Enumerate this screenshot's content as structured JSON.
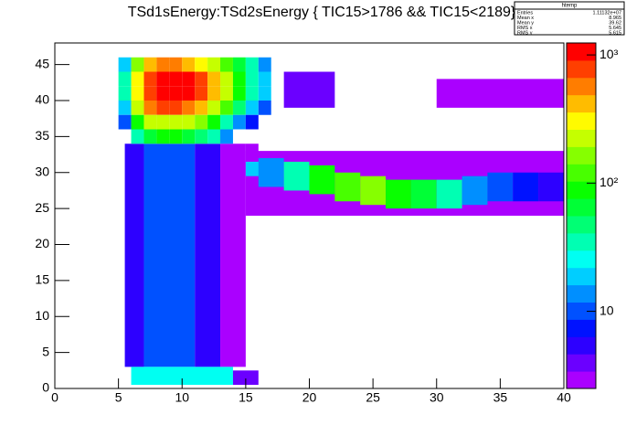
{
  "chart_data": {
    "type": "heatmap",
    "title": "TSd1sEnergy:TSd2sEnergy { TIC15>1786 && TIC15<2189}",
    "stats": {
      "name": "htemp",
      "rows": [
        {
          "label": "Entries",
          "value": "1.11132e+07"
        },
        {
          "label": "Mean x",
          "value": "8.965"
        },
        {
          "label": "Mean y",
          "value": "39.62"
        },
        {
          "label": "RMS x",
          "value": "5.645"
        },
        {
          "label": "RMS y",
          "value": "5.615"
        }
      ]
    },
    "xlim": [
      0,
      40
    ],
    "xticks": [
      0,
      5,
      10,
      15,
      20,
      25,
      30,
      35,
      40
    ],
    "ylim": [
      0,
      48
    ],
    "yticks": [
      0,
      5,
      10,
      15,
      20,
      25,
      30,
      35,
      40,
      45
    ],
    "zlim": [
      2.5,
      1240
    ],
    "zlog": true,
    "zticks": [
      10,
      {
        "value": 100,
        "label": "10²"
      },
      {
        "value": 1000,
        "label": "10³"
      }
    ],
    "cells": [
      [
        15,
        40,
        24,
        33,
        3
      ],
      [
        30,
        40,
        39,
        43,
        3
      ],
      [
        18,
        22,
        39,
        44,
        4
      ],
      [
        5.5,
        7,
        3,
        34,
        5
      ],
      [
        7,
        11,
        3,
        34,
        10
      ],
      [
        11,
        13,
        3,
        34,
        6
      ],
      [
        13,
        15,
        3,
        34,
        3
      ],
      [
        15,
        16,
        30,
        34,
        3
      ],
      [
        6,
        14,
        0.5,
        3,
        25
      ],
      [
        14,
        16,
        0.5,
        2.5,
        4
      ],
      [
        15,
        18,
        29.5,
        31.5,
        20
      ],
      [
        16,
        18,
        28,
        32,
        15
      ],
      [
        18,
        20,
        27.5,
        31.5,
        40
      ],
      [
        20,
        22,
        27,
        31,
        80
      ],
      [
        22,
        24,
        26,
        30,
        120
      ],
      [
        24,
        26,
        25.5,
        29.5,
        150
      ],
      [
        26,
        28,
        25,
        29,
        100
      ],
      [
        28,
        30,
        25,
        29,
        60
      ],
      [
        30,
        32,
        25,
        29,
        30
      ],
      [
        32,
        34,
        25.5,
        29.5,
        15
      ],
      [
        34,
        36,
        26,
        30,
        10
      ],
      [
        36,
        38,
        26,
        30,
        8
      ],
      [
        38,
        40,
        26,
        30,
        6
      ],
      [
        5,
        6,
        44,
        46,
        20
      ],
      [
        6,
        7,
        44,
        46,
        150
      ],
      [
        7,
        8,
        44,
        46,
        400
      ],
      [
        8,
        9,
        44,
        46,
        500
      ],
      [
        9,
        10,
        44,
        46,
        500
      ],
      [
        10,
        11,
        44,
        46,
        400
      ],
      [
        11,
        12,
        44,
        46,
        300
      ],
      [
        12,
        13,
        44,
        46,
        200
      ],
      [
        13,
        14,
        44,
        46,
        120
      ],
      [
        14,
        15,
        44,
        46,
        60
      ],
      [
        15,
        16,
        44,
        46,
        30
      ],
      [
        16,
        17,
        44,
        46,
        15
      ],
      [
        5,
        6,
        42,
        44,
        30
      ],
      [
        6,
        7,
        42,
        44,
        300
      ],
      [
        7,
        8,
        42,
        44,
        900
      ],
      [
        8,
        9,
        42,
        44,
        1100
      ],
      [
        9,
        10,
        42,
        44,
        1100
      ],
      [
        10,
        11,
        42,
        44,
        1000
      ],
      [
        11,
        12,
        42,
        44,
        700
      ],
      [
        12,
        13,
        42,
        44,
        400
      ],
      [
        13,
        14,
        42,
        44,
        200
      ],
      [
        14,
        15,
        42,
        44,
        80
      ],
      [
        15,
        16,
        42,
        44,
        40
      ],
      [
        16,
        17,
        42,
        44,
        20
      ],
      [
        5,
        6,
        40,
        42,
        30
      ],
      [
        6,
        7,
        40,
        42,
        300
      ],
      [
        7,
        8,
        40,
        42,
        900
      ],
      [
        8,
        9,
        40,
        42,
        1100
      ],
      [
        9,
        10,
        40,
        42,
        1100
      ],
      [
        10,
        11,
        40,
        42,
        1000
      ],
      [
        11,
        12,
        40,
        42,
        700
      ],
      [
        12,
        13,
        40,
        42,
        400
      ],
      [
        13,
        14,
        40,
        42,
        200
      ],
      [
        14,
        15,
        40,
        42,
        80
      ],
      [
        15,
        16,
        40,
        42,
        40
      ],
      [
        16,
        17,
        40,
        42,
        20
      ],
      [
        5,
        6,
        38,
        40,
        20
      ],
      [
        6,
        7,
        38,
        40,
        200
      ],
      [
        7,
        8,
        38,
        40,
        500
      ],
      [
        8,
        9,
        38,
        40,
        700
      ],
      [
        9,
        10,
        38,
        40,
        700
      ],
      [
        10,
        11,
        38,
        40,
        600
      ],
      [
        11,
        12,
        38,
        40,
        400
      ],
      [
        12,
        13,
        38,
        40,
        250
      ],
      [
        13,
        14,
        38,
        40,
        120
      ],
      [
        14,
        15,
        38,
        40,
        50
      ],
      [
        15,
        16,
        38,
        40,
        20
      ],
      [
        16,
        17,
        38,
        40,
        10
      ],
      [
        5,
        6,
        36,
        38,
        10
      ],
      [
        6,
        7,
        36,
        38,
        80
      ],
      [
        7,
        8,
        36,
        38,
        200
      ],
      [
        8,
        9,
        36,
        38,
        250
      ],
      [
        9,
        10,
        36,
        38,
        250
      ],
      [
        10,
        11,
        36,
        38,
        200
      ],
      [
        11,
        12,
        36,
        38,
        150
      ],
      [
        12,
        13,
        36,
        38,
        80
      ],
      [
        13,
        14,
        36,
        38,
        40
      ],
      [
        14,
        15,
        36,
        38,
        15
      ],
      [
        15,
        16,
        36,
        38,
        8
      ],
      [
        6,
        7,
        34,
        36,
        30
      ],
      [
        7,
        8,
        34,
        36,
        60
      ],
      [
        8,
        9,
        34,
        36,
        80
      ],
      [
        9,
        10,
        34,
        36,
        80
      ],
      [
        10,
        11,
        34,
        36,
        70
      ],
      [
        11,
        12,
        34,
        36,
        50
      ],
      [
        12,
        13,
        34,
        36,
        30
      ],
      [
        13,
        14,
        34,
        36,
        15
      ]
    ]
  }
}
